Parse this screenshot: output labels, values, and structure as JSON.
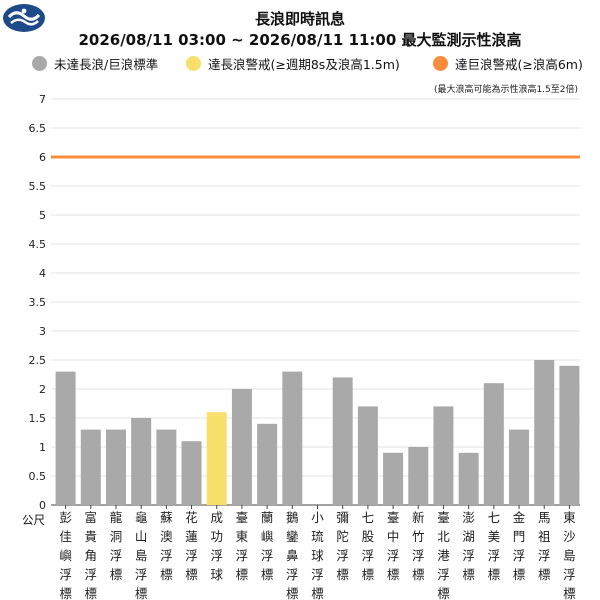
{
  "header": {
    "title": "長浪即時訊息",
    "subtitle": "2026/08/11 03:00 ~ 2026/08/11 11:00 最大監測示性浪高"
  },
  "legend": [
    {
      "label": "未達長浪/巨浪標準",
      "color": "#a9a9a9"
    },
    {
      "label": "達長浪警戒(≥週期8s及浪高1.5m)",
      "color": "#f8de6b"
    },
    {
      "label": "達巨浪警戒(≥浪高6m)",
      "color": "#fa8c3c"
    }
  ],
  "note": "(最大浪高可能為示性浪高1.5至2倍)",
  "unit_label": "公尺",
  "logo_icon": "cwa-logo-icon",
  "chart_data": {
    "type": "bar",
    "title": "2026/08/11 03:00 ~ 2026/08/11 11:00 最大監測示性浪高",
    "ylabel": "公尺",
    "ylim": [
      0,
      7
    ],
    "yticks": [
      "0",
      "0.5",
      "1",
      "1.5",
      "2",
      "2.5",
      "3",
      "3.5",
      "4",
      "4.5",
      "5",
      "5.5",
      "6",
      "6.5",
      "7"
    ],
    "grid": true,
    "threshold_line": {
      "value": 6,
      "color": "#fa8c3c"
    },
    "categories": [
      "彭佳嶼浮標",
      "富貴角浮標",
      "龍洞浮標",
      "龜山島浮標",
      "蘇澳浮標",
      "花蓮浮標",
      "成功浮球",
      "臺東浮標",
      "蘭嶼浮標",
      "鵝鑾鼻浮標",
      "小琉球浮標",
      "彌陀浮標",
      "七股浮標",
      "臺中浮標",
      "新竹浮標",
      "臺北港浮標",
      "澎湖浮標",
      "七美浮標",
      "金門浮標",
      "馬祖浮標",
      "東沙島浮標"
    ],
    "values": [
      2.3,
      1.3,
      1.3,
      1.5,
      1.3,
      1.1,
      1.6,
      2.0,
      1.4,
      2.3,
      null,
      2.2,
      1.7,
      0.9,
      1.0,
      1.7,
      0.9,
      2.1,
      1.3,
      2.5,
      2.4
    ],
    "colors": [
      "#a9a9a9",
      "#a9a9a9",
      "#a9a9a9",
      "#a9a9a9",
      "#a9a9a9",
      "#a9a9a9",
      "#f8de6b",
      "#a9a9a9",
      "#a9a9a9",
      "#a9a9a9",
      "#a9a9a9",
      "#a9a9a9",
      "#a9a9a9",
      "#a9a9a9",
      "#a9a9a9",
      "#a9a9a9",
      "#a9a9a9",
      "#a9a9a9",
      "#a9a9a9",
      "#a9a9a9",
      "#a9a9a9"
    ]
  }
}
